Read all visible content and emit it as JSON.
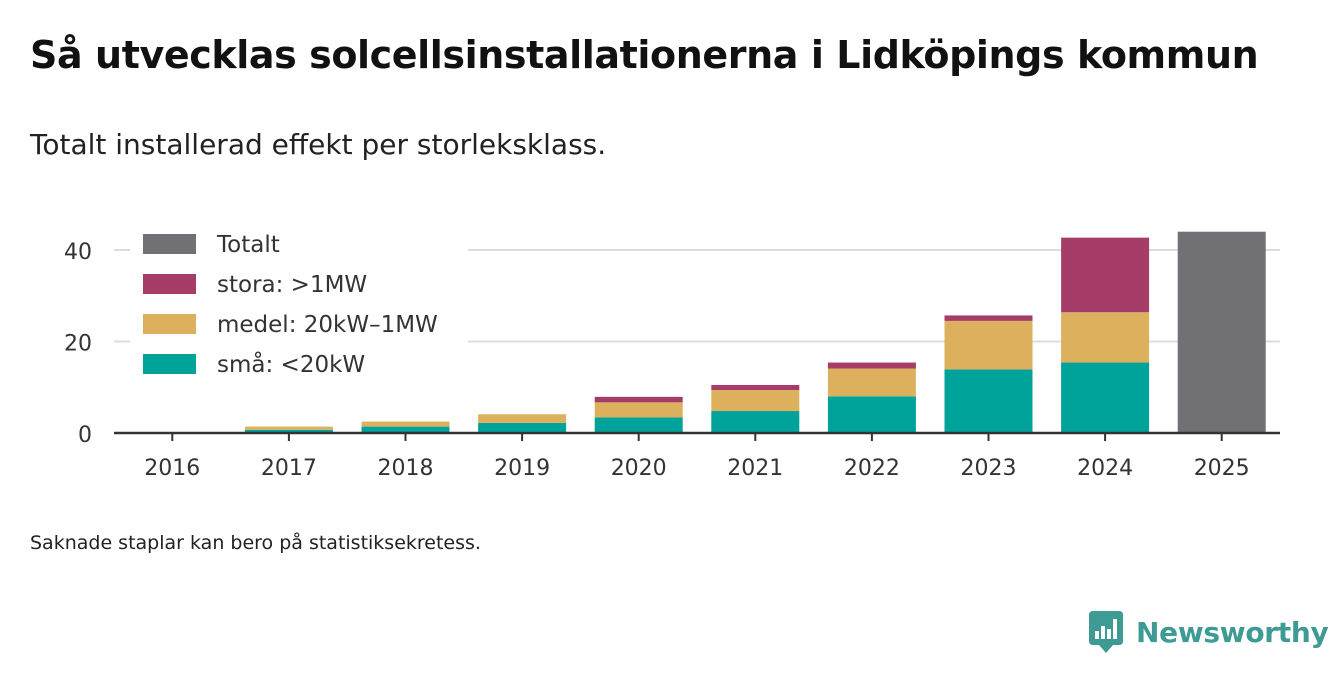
{
  "header": {
    "title": "Så utvecklas solcellsinstallationerna i Lidköpings kommun",
    "subtitle": "Totalt installerad effekt per storleksklass."
  },
  "footer": {
    "note": "Saknade staplar kan bero på statistiksekretess.",
    "brand": "Newsworthy",
    "brand_color": "#3d9b94"
  },
  "chart_data": {
    "type": "bar",
    "stacked": true,
    "title": "Så utvecklas solcellsinstallationerna i Lidköpings kommun",
    "subtitle": "Totalt installerad effekt per storleksklass.",
    "xlabel": "",
    "ylabel": "",
    "ylim": [
      0,
      45
    ],
    "yticks": [
      0,
      20,
      40
    ],
    "grid": true,
    "legend_position": "top-left",
    "categories": [
      "2016",
      "2017",
      "2018",
      "2019",
      "2020",
      "2021",
      "2022",
      "2023",
      "2024",
      "2025"
    ],
    "series": [
      {
        "name": "små: <20kW",
        "color": "#00a39a",
        "values": [
          0.1,
          0.7,
          1.4,
          2.2,
          3.4,
          4.8,
          8.0,
          13.9,
          15.4,
          null
        ]
      },
      {
        "name": "medel: 20kW–1MW",
        "color": "#ddb05e",
        "values": [
          0.0,
          0.7,
          1.1,
          1.9,
          3.3,
          4.6,
          6.1,
          10.6,
          11.0,
          null
        ]
      },
      {
        "name": "stora: >1MW",
        "color": "#a63c68",
        "values": [
          0.0,
          0.0,
          0.0,
          0.0,
          1.2,
          1.1,
          1.3,
          1.2,
          16.3,
          null
        ]
      },
      {
        "name": "Totalt",
        "color": "#707075",
        "values": [
          null,
          null,
          null,
          null,
          null,
          null,
          null,
          null,
          null,
          44.0
        ]
      }
    ],
    "legend_order": [
      "Totalt",
      "stora: >1MW",
      "medel: 20kW–1MW",
      "små: <20kW"
    ]
  }
}
